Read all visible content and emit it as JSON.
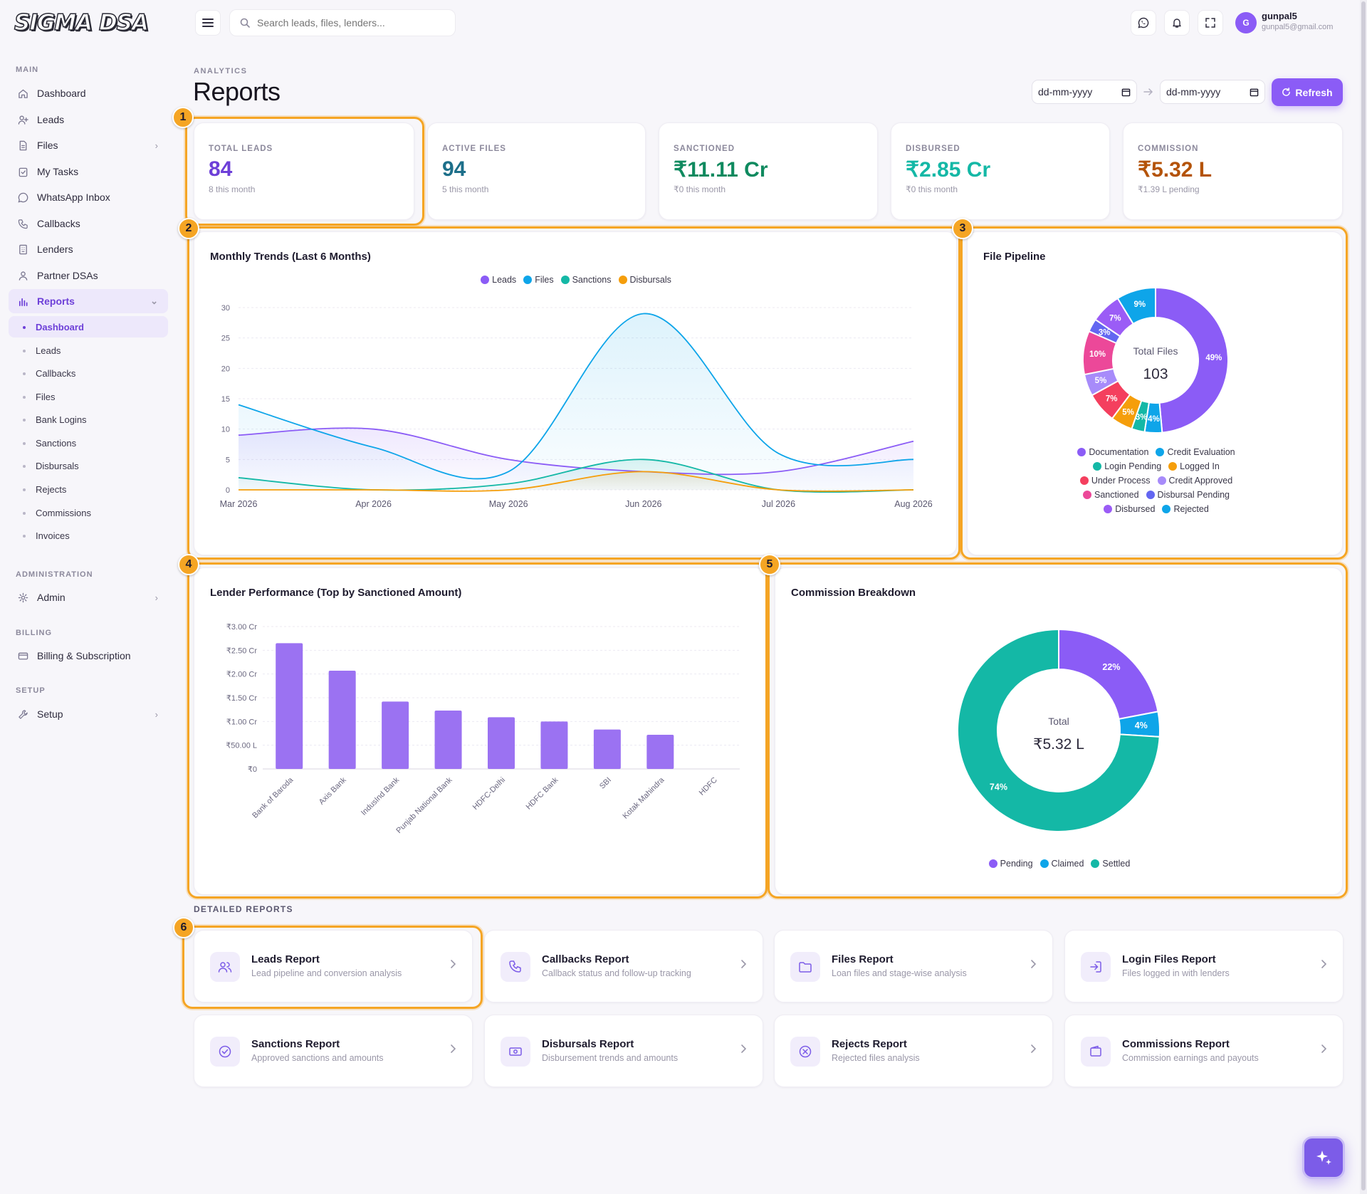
{
  "app": {
    "logo": "SIGMA DSA"
  },
  "topbar": {
    "search_placeholder": "Search leads, files, lenders...",
    "user_initial": "G",
    "user_name": "gunpal5",
    "user_email": "gunpal5@gmail.com"
  },
  "sidebar": {
    "sections": {
      "main": "MAIN",
      "administration": "ADMINISTRATION",
      "billing": "BILLING",
      "setup": "SETUP"
    },
    "items": [
      {
        "label": "Dashboard",
        "icon": "home-icon"
      },
      {
        "label": "Leads",
        "icon": "user-plus-icon"
      },
      {
        "label": "Files",
        "icon": "file-icon"
      },
      {
        "label": "My Tasks",
        "icon": "clipboard-check-icon"
      },
      {
        "label": "WhatsApp Inbox",
        "icon": "whatsapp-icon"
      },
      {
        "label": "Callbacks",
        "icon": "phone-icon"
      },
      {
        "label": "Lenders",
        "icon": "building-icon"
      },
      {
        "label": "Partner DSAs",
        "icon": "users-icon"
      },
      {
        "label": "Reports",
        "icon": "bar-chart-icon"
      }
    ],
    "report_sub": [
      "Dashboard",
      "Leads",
      "Callbacks",
      "Files",
      "Bank Logins",
      "Sanctions",
      "Disbursals",
      "Rejects",
      "Commissions",
      "Invoices"
    ],
    "admin": "Admin",
    "billing": "Billing & Subscription",
    "setup": "Setup"
  },
  "header": {
    "breadcrumb": "ANALYTICS",
    "title": "Reports",
    "date_from": "dd-mm-yyyy",
    "date_to": "dd-mm-yyyy",
    "refresh_label": "Refresh"
  },
  "stats": [
    {
      "label": "TOTAL LEADS",
      "value": "84",
      "sub": "8 this month",
      "color": "#6d3fd8"
    },
    {
      "label": "ACTIVE FILES",
      "value": "94",
      "sub": "5 this month",
      "color": "#1d6f8a"
    },
    {
      "label": "SANCTIONED",
      "value": "₹11.11 Cr",
      "sub": "₹0 this month",
      "color": "#0f8a5f"
    },
    {
      "label": "DISBURSED",
      "value": "₹2.85 Cr",
      "sub": "₹0 this month",
      "color": "#14b8a6"
    },
    {
      "label": "COMMISSION",
      "value": "₹5.32 L",
      "sub": "₹1.39 L pending",
      "color": "#b45309"
    }
  ],
  "badges": [
    "1",
    "2",
    "3",
    "4",
    "5",
    "6"
  ],
  "panels": {
    "trends_title": "Monthly Trends (Last 6 Months)",
    "pipeline_title": "File Pipeline",
    "lender_title": "Lender Performance (Top by Sanctioned Amount)",
    "commission_title": "Commission Breakdown"
  },
  "chart_data": [
    {
      "type": "line",
      "title": "Monthly Trends (Last 6 Months)",
      "x": [
        "Mar 2026",
        "Apr 2026",
        "May 2026",
        "Jun 2026",
        "Jul 2026",
        "Aug 2026"
      ],
      "ylim": [
        0,
        30
      ],
      "yticks": [
        0,
        5,
        10,
        15,
        20,
        25,
        30
      ],
      "legend_position": "top",
      "series": [
        {
          "name": "Leads",
          "color": "#8b5cf6",
          "values": [
            9,
            10,
            5,
            3,
            3,
            8
          ]
        },
        {
          "name": "Files",
          "color": "#0ea5e9",
          "values": [
            14,
            7,
            3,
            29,
            6,
            5
          ]
        },
        {
          "name": "Sanctions",
          "color": "#14b8a6",
          "values": [
            2,
            0,
            1,
            5,
            0,
            0
          ]
        },
        {
          "name": "Disbursals",
          "color": "#f59e0b",
          "values": [
            0,
            0,
            0,
            3,
            0,
            0
          ]
        }
      ]
    },
    {
      "type": "pie",
      "title": "File Pipeline",
      "center_label": "Total Files",
      "center_value": "103",
      "labels": [
        "Documentation",
        "Credit Evaluation",
        "Login Pending",
        "Logged In",
        "Under Process",
        "Credit Approved",
        "Sanctioned",
        "Disbursal Pending",
        "Disbursed",
        "Rejected"
      ],
      "values": [
        50,
        4,
        3,
        5,
        7,
        5,
        10,
        3,
        7,
        9
      ],
      "percent_labels": [
        "49%",
        "4%",
        "3%",
        "5%",
        "7%",
        "5%",
        "10%",
        "3%",
        "7%",
        "9%"
      ],
      "colors": [
        "#8b5cf6",
        "#0ea5e9",
        "#14b8a6",
        "#f59e0b",
        "#f43f5e",
        "#a78bfa",
        "#ec4899",
        "#6366f1",
        "#9b5cf6",
        "#0ea5e9"
      ]
    },
    {
      "type": "bar",
      "title": "Lender Performance (Top by Sanctioned Amount)",
      "categories": [
        "Bank of Baroda",
        "Axis Bank",
        "IndusInd Bank",
        "Punjab National Bank",
        "HDFC-Delhi",
        "HDFC Bank",
        "SBI",
        "Kotak Mahindra",
        "HDFC"
      ],
      "values": [
        2.65,
        2.07,
        1.42,
        1.23,
        1.09,
        1.0,
        0.83,
        0.72,
        0
      ],
      "unit": "Cr",
      "yticks": [
        "₹0",
        "₹50.00 L",
        "₹1.00 Cr",
        "₹1.50 Cr",
        "₹2.00 Cr",
        "₹2.50 Cr",
        "₹3.00 Cr"
      ],
      "ylim": [
        0,
        3
      ],
      "color": "#9b72f2"
    },
    {
      "type": "pie",
      "title": "Commission Breakdown",
      "center_label": "Total",
      "center_value": "₹5.32 L",
      "labels": [
        "Pending",
        "Claimed",
        "Settled"
      ],
      "values": [
        22,
        4,
        74
      ],
      "percent_labels": [
        "22%",
        "4%",
        "74%"
      ],
      "colors": [
        "#8b5cf6",
        "#0ea5e9",
        "#14b8a6"
      ]
    }
  ],
  "detailed": {
    "title": "DETAILED REPORTS",
    "reports": [
      {
        "title": "Leads Report",
        "sub": "Lead pipeline and conversion analysis",
        "icon": "users-icon"
      },
      {
        "title": "Callbacks Report",
        "sub": "Callback status and follow-up tracking",
        "icon": "phone-icon"
      },
      {
        "title": "Files Report",
        "sub": "Loan files and stage-wise analysis",
        "icon": "folder-icon"
      },
      {
        "title": "Login Files Report",
        "sub": "Files logged in with lenders",
        "icon": "login-icon"
      },
      {
        "title": "Sanctions Report",
        "sub": "Approved sanctions and amounts",
        "icon": "check-circle-icon"
      },
      {
        "title": "Disbursals Report",
        "sub": "Disbursement trends and amounts",
        "icon": "banknote-icon"
      },
      {
        "title": "Rejects Report",
        "sub": "Rejected files analysis",
        "icon": "x-circle-icon"
      },
      {
        "title": "Commissions Report",
        "sub": "Commission earnings and payouts",
        "icon": "wallet-icon"
      }
    ]
  }
}
